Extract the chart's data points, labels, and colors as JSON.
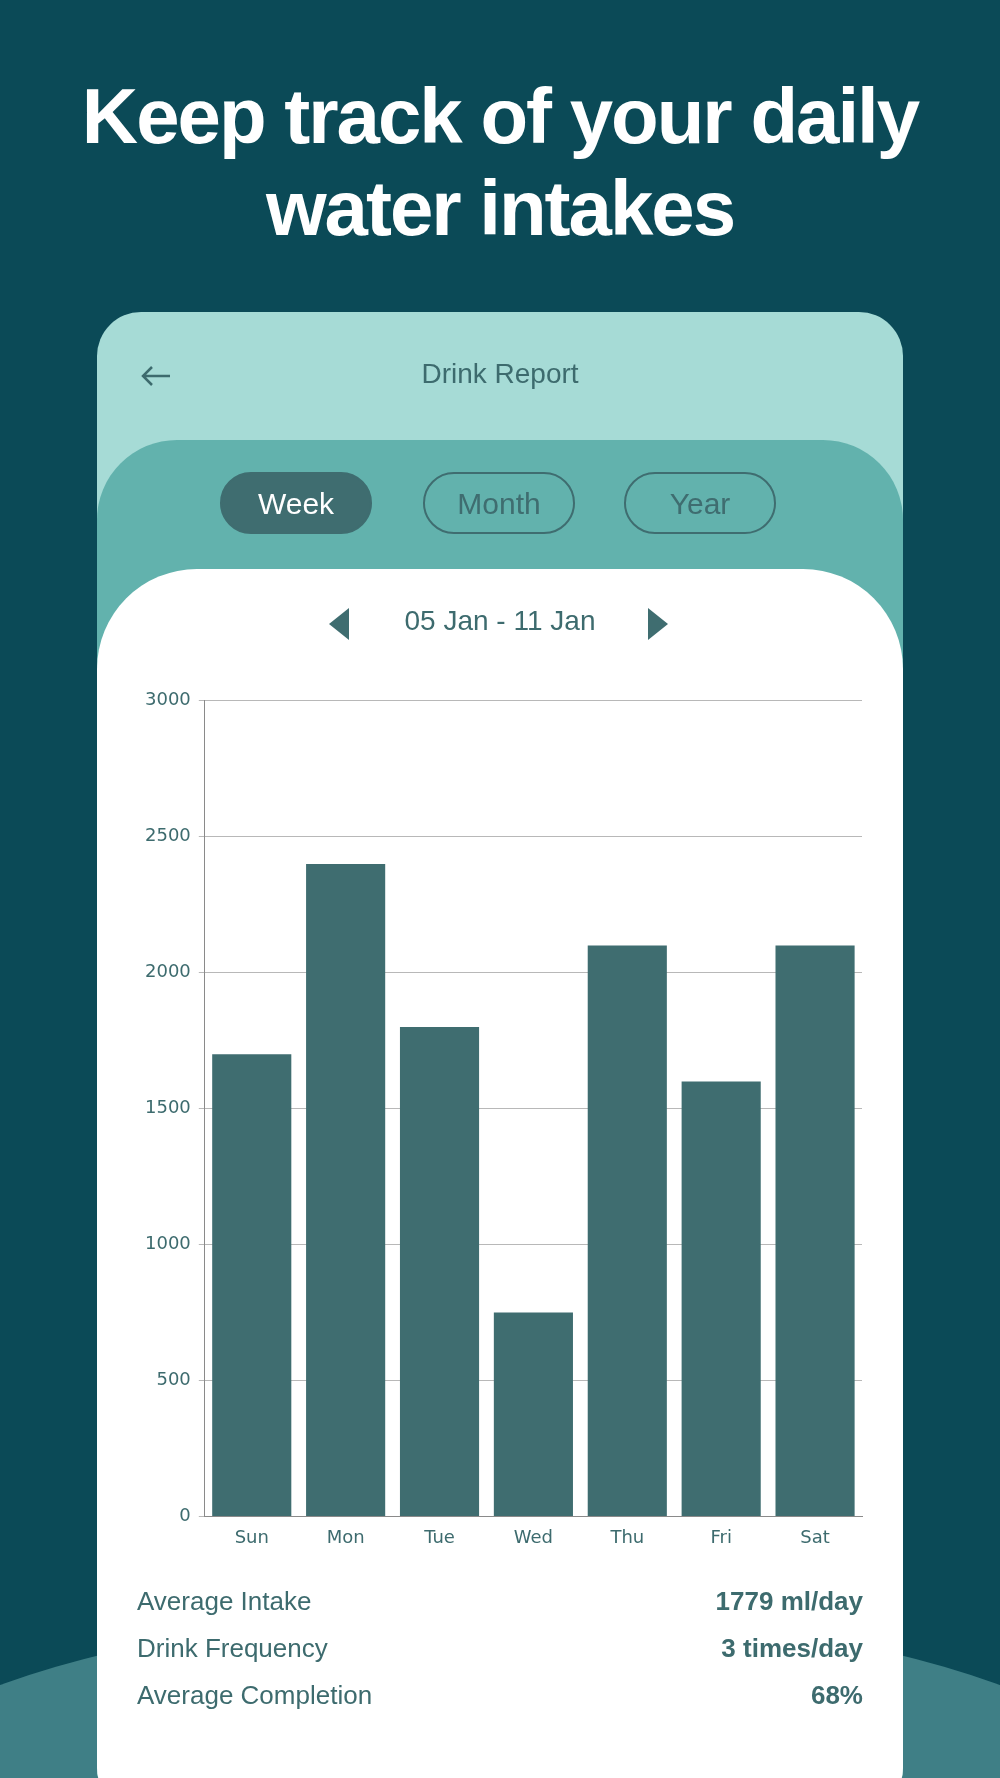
{
  "chart_data": {
    "type": "bar",
    "title": "Keep track of your daily water intakes",
    "subtitle": "Drink Report",
    "categories": [
      "Sun",
      "Mon",
      "Tue",
      "Wed",
      "Thu",
      "Fri",
      "Sat"
    ],
    "values": [
      1700,
      2400,
      1800,
      750,
      2100,
      1600,
      2100
    ],
    "color": "#3f6d70",
    "ylim": [
      0,
      3000
    ],
    "yticks": [
      0,
      500,
      1000,
      1500,
      2000,
      2500,
      3000
    ],
    "grid": "y",
    "legend": false,
    "annotations": [
      "Week",
      "Month",
      "Year",
      "05 Jan - 11 Jan",
      "Average Intake",
      "1779 ml/day",
      "Drink Frequency",
      "3 times/day",
      "Average Completion",
      "68%"
    ]
  }
}
